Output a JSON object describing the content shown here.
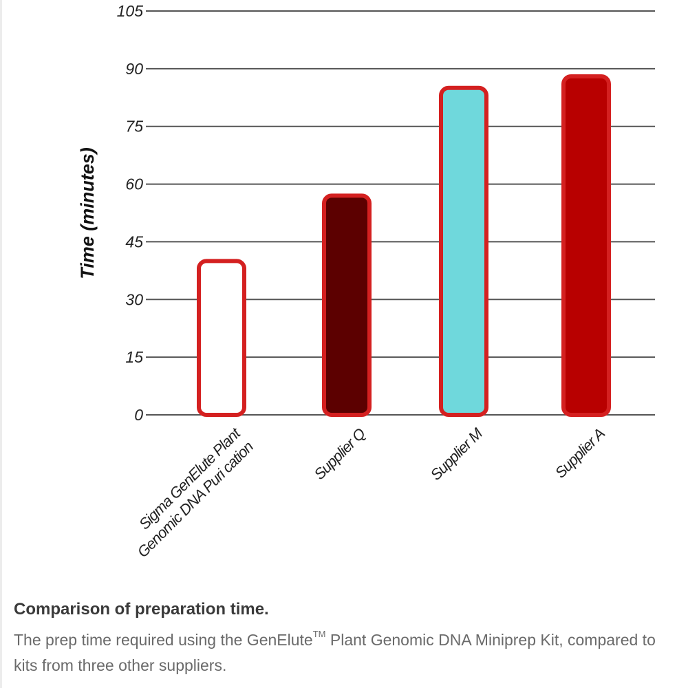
{
  "chart_data": {
    "type": "bar",
    "categories": [
      [
        "Sigma GenElute Plant",
        "Genomic DNA Puri cation"
      ],
      [
        "Supplier Q"
      ],
      [
        "Supplier M"
      ],
      [
        "Supplier A"
      ]
    ],
    "values": [
      40,
      57,
      85,
      88
    ],
    "bar_colors": [
      "#ffffff",
      "#5c0000",
      "#6fd8dc",
      "#b80000"
    ],
    "bar_outline_color": "#d42020",
    "ylabel": "Time (minutes)",
    "ylim": [
      0,
      105
    ],
    "yticks": [
      0,
      15,
      30,
      45,
      60,
      75,
      90,
      105
    ],
    "grid": true
  },
  "caption": {
    "title": "Comparison of preparation time.",
    "body_before_tm": "The prep time required using the GenElute",
    "tm": "TM",
    "body_after_tm": " Plant Genomic DNA Miniprep Kit, compared to kits from three other suppliers."
  }
}
